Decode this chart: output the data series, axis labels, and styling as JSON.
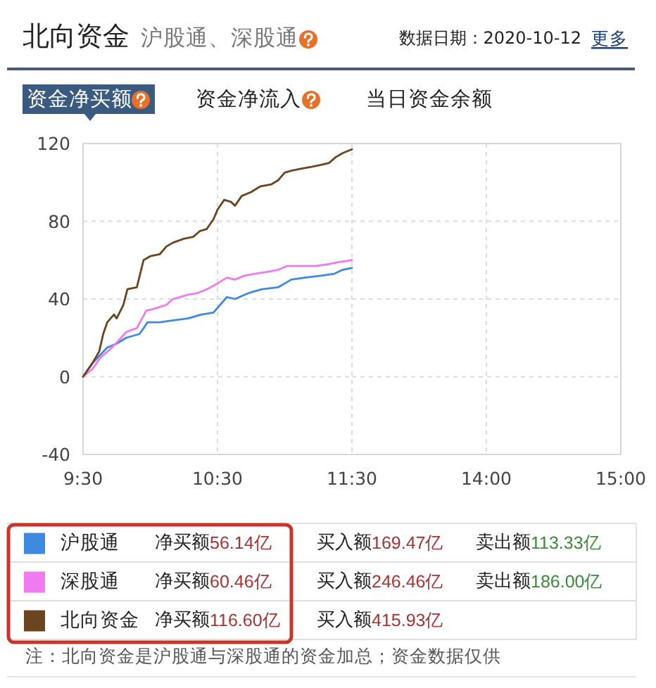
{
  "chart_data": [
    {
      "type": "line",
      "title": "北向资金",
      "subtitle": "沪股通、深股通",
      "annotations": [
        "数据日期：2020-10-12",
        "更多",
        "资金净买额",
        "资金净流入",
        "当日资金余额",
        "净买额56.14亿",
        "买入额169.47亿",
        "卖出额113.33亿",
        "净买额60.46亿",
        "买入额246.46亿",
        "卖出额186.00亿",
        "净买额116.60亿",
        "买入额415.93亿",
        "注：北向资金是沪股通与深股通的资金加总；资金数据仅供"
      ],
      "xlim": [
        9.5,
        11.5
      ],
      "xticks": [
        {
          "value": 9.5,
          "label": "9:30"
        },
        {
          "value": 10.5,
          "label": "10:30"
        },
        {
          "value": 11.5,
          "label": "11:30"
        }
      ],
      "ylim": [
        -40,
        120
      ],
      "yticks": [
        -40,
        0,
        40,
        80,
        120
      ],
      "grid": true,
      "legend": "bottom",
      "series": [
        {
          "name": "沪股通",
          "color": "#3d8ae0",
          "x": [
            9.5,
            9.57,
            9.68,
            9.75,
            9.82,
            9.92,
            9.98,
            10.07,
            10.17,
            10.28,
            10.38,
            10.47,
            10.52,
            10.57,
            10.63,
            10.73,
            10.83,
            10.95,
            11.05,
            11.15,
            11.27,
            11.37,
            11.43,
            11.5
          ],
          "values": [
            0,
            7,
            15,
            17,
            20,
            22,
            28,
            28,
            29,
            30,
            32,
            33,
            37,
            41,
            40,
            43,
            45,
            46,
            50,
            51,
            52,
            53,
            55,
            56
          ]
        },
        {
          "name": "深股通",
          "color": "#f07af0",
          "x": [
            9.5,
            9.57,
            9.63,
            9.7,
            9.77,
            9.82,
            9.9,
            9.97,
            10.03,
            10.12,
            10.17,
            10.27,
            10.35,
            10.42,
            10.5,
            10.57,
            10.63,
            10.7,
            10.78,
            10.87,
            10.95,
            11.02,
            11.12,
            11.23,
            11.33,
            11.4,
            11.5
          ],
          "values": [
            0,
            4,
            10,
            14,
            19,
            23,
            25,
            34,
            35,
            37,
            40,
            42,
            43,
            45,
            48,
            51,
            50,
            52,
            53,
            54,
            55,
            57,
            57,
            57,
            58,
            59,
            60
          ]
        },
        {
          "name": "北向资金",
          "color": "#6b4520",
          "x": [
            9.5,
            9.57,
            9.62,
            9.65,
            9.68,
            9.73,
            9.75,
            9.8,
            9.83,
            9.9,
            9.95,
            10,
            10.07,
            10.12,
            10.17,
            10.25,
            10.32,
            10.37,
            10.42,
            10.47,
            10.5,
            10.55,
            10.6,
            10.63,
            10.68,
            10.75,
            10.82,
            10.9,
            10.95,
            11,
            11.05,
            11.12,
            11.2,
            11.27,
            11.33,
            11.38,
            11.43,
            11.5
          ],
          "values": [
            0,
            7,
            13,
            22,
            28,
            32,
            30,
            37,
            45,
            46,
            60,
            62,
            63,
            67,
            69,
            71,
            72,
            75,
            76,
            81,
            86,
            91,
            90,
            88,
            93,
            95,
            98,
            99,
            101,
            105,
            106,
            107,
            108,
            109,
            110,
            113,
            115,
            117
          ]
        }
      ]
    },
    {
      "type": "line",
      "xlim": [
        13,
        15
      ],
      "xticks": [
        {
          "value": 14,
          "label": "14:00"
        },
        {
          "value": 15,
          "label": "15:00"
        }
      ],
      "ylim": [
        -40,
        120
      ],
      "yticks": [
        -40,
        0,
        40,
        80,
        120
      ],
      "grid": true,
      "tick_labels": "x"
    }
  ]
}
